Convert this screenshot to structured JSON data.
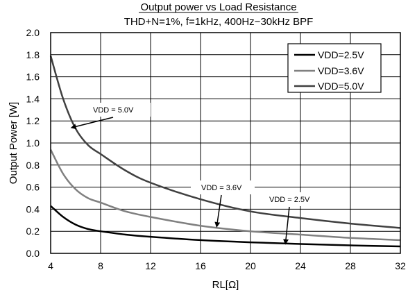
{
  "chart_data": {
    "type": "line",
    "title": "Output power vs Load Resistance",
    "subtitle": "THD+N=1%, f=1kHz, 400Hz−30kHz BPF",
    "xlabel": "RL[Ω]",
    "ylabel": "Output Power [W]",
    "xlim": [
      4,
      32
    ],
    "ylim": [
      0,
      2.0
    ],
    "xticks": [
      4,
      8,
      12,
      16,
      20,
      24,
      28,
      32
    ],
    "xtick_labels": [
      "4",
      "8",
      "12",
      "16",
      "20",
      "24",
      "28",
      "32"
    ],
    "yticks": [
      0,
      0.2,
      0.4,
      0.6,
      0.8,
      1.0,
      1.2,
      1.4,
      1.6,
      1.8,
      2.0
    ],
    "ytick_labels": [
      "0.0",
      "0.2",
      "0.4",
      "0.6",
      "0.8",
      "1.0",
      "1.2",
      "1.4",
      "1.6",
      "1.8",
      "2.0"
    ],
    "grid": true,
    "legend_position": "top-right",
    "x": [
      4,
      5,
      6,
      7,
      8,
      10,
      12,
      16,
      20,
      24,
      28,
      32
    ],
    "series": [
      {
        "name": "VDD=2.5V",
        "color": "#000000",
        "values": [
          0.43,
          0.33,
          0.26,
          0.22,
          0.2,
          0.17,
          0.15,
          0.12,
          0.1,
          0.085,
          0.072,
          0.063
        ]
      },
      {
        "name": "VDD=3.6V",
        "color": "#808080",
        "values": [
          0.94,
          0.72,
          0.58,
          0.5,
          0.46,
          0.38,
          0.33,
          0.25,
          0.2,
          0.17,
          0.14,
          0.12
        ]
      },
      {
        "name": "VDD=5.0V",
        "color": "#404040",
        "values": [
          1.79,
          1.4,
          1.13,
          0.98,
          0.9,
          0.75,
          0.64,
          0.49,
          0.38,
          0.32,
          0.27,
          0.23
        ]
      }
    ],
    "annotations": [
      {
        "text": "VDD = 5.0V",
        "x": 5.7,
        "y": 1.14
      },
      {
        "text": "VDD = 3.6V",
        "x": 17.3,
        "y": 0.245
      },
      {
        "text": "VDD = 2.5V",
        "x": 22.8,
        "y": 0.09
      }
    ]
  }
}
